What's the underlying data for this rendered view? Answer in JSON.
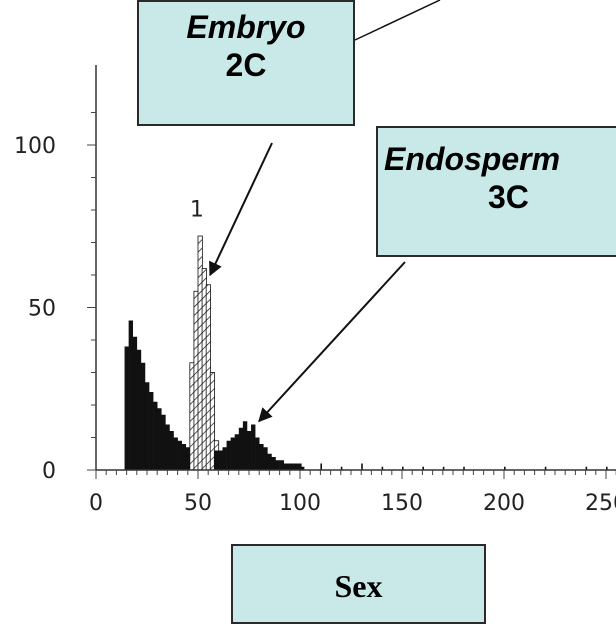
{
  "chart_data": {
    "type": "histogram",
    "xlabel": "Sex",
    "xlim": [
      0,
      260
    ],
    "ylim": [
      0,
      120
    ],
    "x_ticks": [
      0,
      50,
      100,
      150,
      200,
      250
    ],
    "x_tick_labels": [
      "0",
      "50",
      "100",
      "150",
      "200",
      "250"
    ],
    "y_ticks": [
      0,
      50,
      100
    ],
    "y_tick_labels": [
      "0",
      "50",
      "100"
    ],
    "peak_label": "1",
    "series": [
      {
        "name": "",
        "fill": "solid",
        "x": [
          14,
          16,
          18,
          20,
          22,
          24,
          26,
          28,
          30,
          32,
          34,
          36,
          38,
          40,
          42,
          44,
          46
        ],
        "values": [
          38,
          46,
          41,
          37,
          33,
          27,
          24,
          21,
          19,
          17,
          14,
          12,
          10,
          9,
          8,
          7,
          7
        ]
      },
      {
        "name": "",
        "fill": "hatched",
        "x": [
          46,
          48,
          50,
          52,
          54,
          56,
          58
        ],
        "values": [
          33,
          55,
          72,
          62,
          57,
          30,
          9
        ]
      },
      {
        "name": "",
        "fill": "solid",
        "x": [
          58,
          60,
          62,
          64,
          66,
          68,
          70,
          72,
          74,
          76,
          78,
          80,
          82,
          84,
          86,
          88,
          90,
          92,
          94,
          96,
          98,
          100
        ],
        "values": [
          6,
          6,
          7,
          9,
          10,
          11,
          13,
          15,
          12,
          14,
          10,
          8,
          7,
          5,
          4,
          3,
          3,
          2,
          2,
          2,
          2,
          1
        ]
      },
      {
        "name": "",
        "fill": "tail",
        "x": [
          100,
          110,
          120,
          130,
          140,
          150,
          160,
          170,
          180,
          190,
          200,
          210,
          220,
          230,
          240,
          250,
          260
        ],
        "values": [
          2,
          2,
          1,
          2,
          1,
          1,
          1,
          1,
          1,
          0,
          1,
          0,
          1,
          0,
          1,
          1,
          1
        ]
      }
    ],
    "annotations": [
      {
        "line1": "Embryo",
        "line2": "2C",
        "target_x": 52,
        "target_y": 60
      },
      {
        "line1": "Endosperm",
        "line2": "3C",
        "target_x": 76,
        "target_y": 15
      }
    ]
  }
}
